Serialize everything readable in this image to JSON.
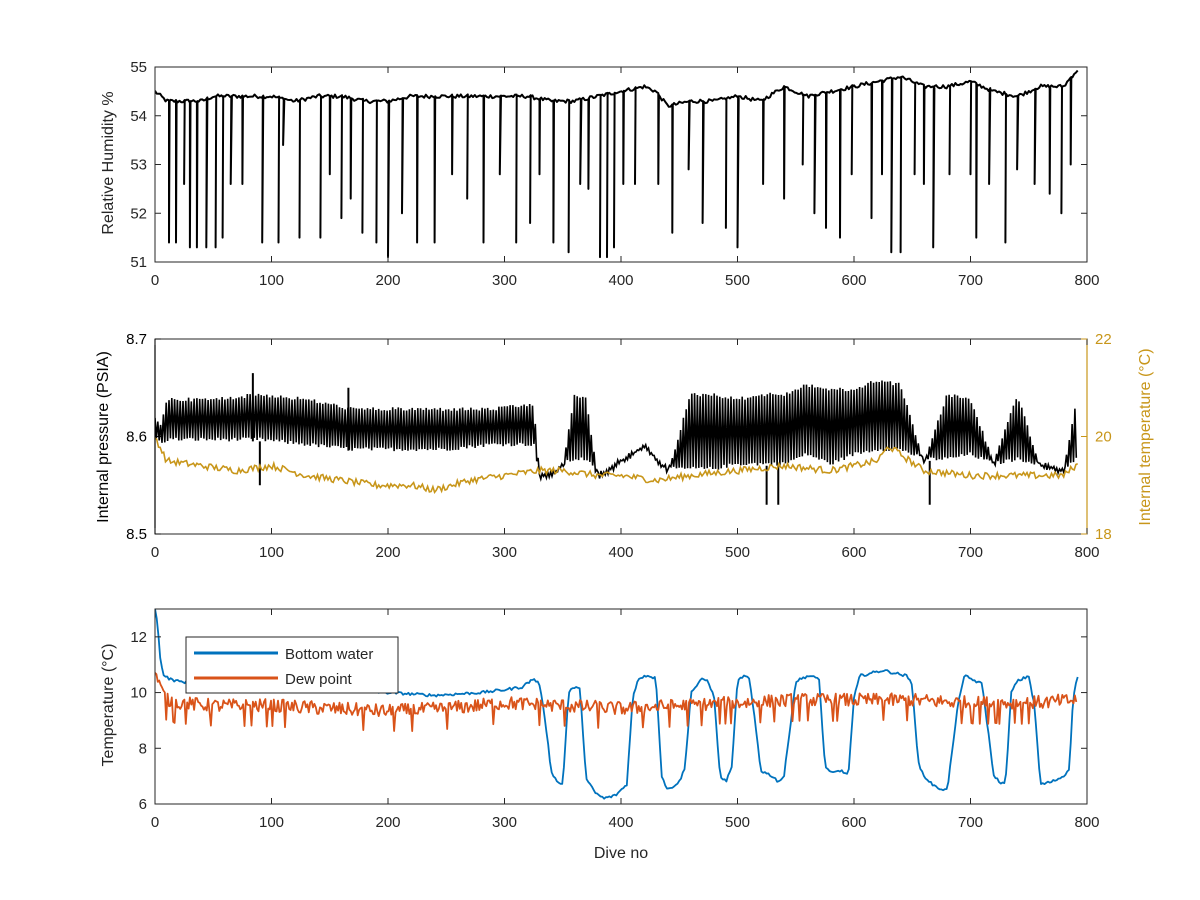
{
  "colors": {
    "black": "#000000",
    "axis": "#262626",
    "right_axis": "#c8961a",
    "bottom_water": "#0072bd",
    "dew_point": "#d95319"
  },
  "chart_data": [
    {
      "type": "line",
      "xlabel": "",
      "ylabel": "Relative Humidity %",
      "xlim": [
        0,
        800
      ],
      "ylim": [
        51,
        55
      ],
      "xticks": [
        0,
        100,
        200,
        300,
        400,
        500,
        600,
        700,
        800
      ],
      "yticks": [
        51,
        52,
        53,
        54,
        55
      ],
      "grid": false,
      "series": [
        {
          "color": "#000000",
          "x": [
            0,
            10,
            20,
            30,
            40,
            50,
            60,
            70,
            80,
            100,
            120,
            140,
            160,
            180,
            200,
            220,
            240,
            260,
            280,
            300,
            320,
            340,
            360,
            380,
            400,
            420,
            430,
            440,
            460,
            480,
            500,
            520,
            540,
            560,
            580,
            600,
            620,
            640,
            660,
            680,
            700,
            720,
            740,
            760,
            780,
            790
          ],
          "y": [
            54.5,
            54.3,
            54.3,
            54.3,
            54.3,
            54.4,
            54.4,
            54.4,
            54.4,
            54.4,
            54.3,
            54.4,
            54.4,
            54.3,
            54.3,
            54.4,
            54.4,
            54.4,
            54.4,
            54.4,
            54.4,
            54.3,
            54.3,
            54.4,
            54.5,
            54.6,
            54.5,
            54.2,
            54.3,
            54.3,
            54.4,
            54.3,
            54.6,
            54.4,
            54.5,
            54.6,
            54.7,
            54.8,
            54.6,
            54.6,
            54.7,
            54.5,
            54.4,
            54.6,
            54.6,
            54.9
          ],
          "dips": [
            {
              "x": 12,
              "y": 51.4
            },
            {
              "x": 18,
              "y": 51.4
            },
            {
              "x": 25,
              "y": 52.6
            },
            {
              "x": 30,
              "y": 51.3
            },
            {
              "x": 36,
              "y": 51.3
            },
            {
              "x": 44,
              "y": 51.3
            },
            {
              "x": 52,
              "y": 51.3
            },
            {
              "x": 58,
              "y": 51.5
            },
            {
              "x": 65,
              "y": 52.6
            },
            {
              "x": 75,
              "y": 52.6
            },
            {
              "x": 92,
              "y": 51.4
            },
            {
              "x": 106,
              "y": 51.4
            },
            {
              "x": 110,
              "y": 53.4
            },
            {
              "x": 124,
              "y": 51.5
            },
            {
              "x": 142,
              "y": 51.5
            },
            {
              "x": 150,
              "y": 52.8
            },
            {
              "x": 160,
              "y": 51.9
            },
            {
              "x": 168,
              "y": 52.3
            },
            {
              "x": 178,
              "y": 51.6
            },
            {
              "x": 190,
              "y": 51.4
            },
            {
              "x": 200,
              "y": 51.1
            },
            {
              "x": 212,
              "y": 52.0
            },
            {
              "x": 225,
              "y": 51.4
            },
            {
              "x": 240,
              "y": 51.4
            },
            {
              "x": 255,
              "y": 52.8
            },
            {
              "x": 268,
              "y": 52.3
            },
            {
              "x": 282,
              "y": 51.4
            },
            {
              "x": 296,
              "y": 52.8
            },
            {
              "x": 310,
              "y": 51.4
            },
            {
              "x": 322,
              "y": 51.8
            },
            {
              "x": 330,
              "y": 52.8
            },
            {
              "x": 342,
              "y": 51.4
            },
            {
              "x": 355,
              "y": 51.2
            },
            {
              "x": 365,
              "y": 52.6
            },
            {
              "x": 372,
              "y": 52.5
            },
            {
              "x": 382,
              "y": 51.1
            },
            {
              "x": 388,
              "y": 51.1
            },
            {
              "x": 394,
              "y": 51.3
            },
            {
              "x": 402,
              "y": 52.6
            },
            {
              "x": 412,
              "y": 52.6
            },
            {
              "x": 432,
              "y": 52.6
            },
            {
              "x": 444,
              "y": 51.6
            },
            {
              "x": 458,
              "y": 52.9
            },
            {
              "x": 470,
              "y": 51.8
            },
            {
              "x": 490,
              "y": 51.7
            },
            {
              "x": 500,
              "y": 51.3
            },
            {
              "x": 522,
              "y": 52.6
            },
            {
              "x": 540,
              "y": 52.3
            },
            {
              "x": 556,
              "y": 53.0
            },
            {
              "x": 566,
              "y": 52.0
            },
            {
              "x": 576,
              "y": 51.7
            },
            {
              "x": 588,
              "y": 51.5
            },
            {
              "x": 598,
              "y": 52.8
            },
            {
              "x": 615,
              "y": 51.9
            },
            {
              "x": 624,
              "y": 52.8
            },
            {
              "x": 632,
              "y": 51.2
            },
            {
              "x": 640,
              "y": 51.2
            },
            {
              "x": 652,
              "y": 52.8
            },
            {
              "x": 660,
              "y": 52.6
            },
            {
              "x": 668,
              "y": 51.3
            },
            {
              "x": 682,
              "y": 52.8
            },
            {
              "x": 700,
              "y": 52.8
            },
            {
              "x": 705,
              "y": 51.5
            },
            {
              "x": 716,
              "y": 52.6
            },
            {
              "x": 730,
              "y": 51.4
            },
            {
              "x": 740,
              "y": 52.9
            },
            {
              "x": 755,
              "y": 52.6
            },
            {
              "x": 768,
              "y": 52.4
            },
            {
              "x": 778,
              "y": 52.0
            },
            {
              "x": 786,
              "y": 53.0
            }
          ]
        }
      ]
    },
    {
      "type": "line",
      "xlabel": "",
      "ylabel": "Internal pressure (PSIA)",
      "ylabel_right": "Internal temperature (°C)",
      "xlim": [
        0,
        800
      ],
      "ylim": [
        8.5,
        8.7
      ],
      "ylim_right": [
        18,
        22
      ],
      "xticks": [
        0,
        100,
        200,
        300,
        400,
        500,
        600,
        700,
        800
      ],
      "yticks": [
        8.5,
        8.6,
        8.7
      ],
      "yticks_right": [
        18,
        20,
        22
      ],
      "grid": false,
      "series": [
        {
          "axis": "left",
          "color": "#000000",
          "x": [
            0,
            5,
            10,
            50,
            90,
            130,
            170,
            210,
            250,
            290,
            325,
            330,
            340,
            350,
            360,
            370,
            380,
            390,
            400,
            420,
            440,
            460,
            480,
            500,
            520,
            540,
            560,
            580,
            600,
            620,
            640,
            660,
            680,
            700,
            720,
            740,
            760,
            780,
            790
          ],
          "low": [
            8.6,
            8.59,
            8.595,
            8.595,
            8.595,
            8.59,
            8.585,
            8.585,
            8.585,
            8.59,
            8.59,
            8.56,
            8.56,
            8.57,
            8.575,
            8.575,
            8.56,
            8.565,
            8.575,
            8.59,
            8.565,
            8.565,
            8.565,
            8.57,
            8.57,
            8.57,
            8.58,
            8.57,
            8.58,
            8.585,
            8.585,
            8.575,
            8.575,
            8.58,
            8.57,
            8.575,
            8.57,
            8.565,
            8.575
          ],
          "high": [
            8.62,
            8.615,
            8.64,
            8.64,
            8.645,
            8.64,
            8.63,
            8.63,
            8.63,
            8.63,
            8.635,
            8.56,
            8.56,
            8.57,
            8.645,
            8.64,
            8.56,
            8.565,
            8.575,
            8.59,
            8.565,
            8.645,
            8.645,
            8.64,
            8.645,
            8.645,
            8.655,
            8.65,
            8.65,
            8.66,
            8.655,
            8.575,
            8.645,
            8.64,
            8.575,
            8.645,
            8.57,
            8.565,
            8.635
          ],
          "spikes": [
            {
              "x": 84,
              "y": 8.665
            },
            {
              "x": 90,
              "y": 8.55
            },
            {
              "x": 166,
              "y": 8.65
            },
            {
              "x": 525,
              "y": 8.53
            },
            {
              "x": 535,
              "y": 8.53
            },
            {
              "x": 665,
              "y": 8.53
            }
          ]
        },
        {
          "axis": "right",
          "color": "#c8961a",
          "x": [
            0,
            10,
            40,
            70,
            100,
            130,
            160,
            190,
            220,
            240,
            270,
            300,
            330,
            350,
            380,
            400,
            430,
            460,
            500,
            540,
            580,
            620,
            630,
            660,
            700,
            740,
            780,
            790
          ],
          "y": [
            20.0,
            19.5,
            19.4,
            19.3,
            19.4,
            19.2,
            19.1,
            19.0,
            19.0,
            18.9,
            19.1,
            19.2,
            19.3,
            19.3,
            19.2,
            19.2,
            19.1,
            19.2,
            19.3,
            19.4,
            19.3,
            19.5,
            19.8,
            19.3,
            19.2,
            19.2,
            19.2,
            19.4
          ]
        }
      ]
    },
    {
      "type": "line",
      "xlabel": "Dive no",
      "ylabel": "Temperature (°C)",
      "xlim": [
        0,
        800
      ],
      "ylim": [
        6,
        13
      ],
      "xticks": [
        0,
        100,
        200,
        300,
        400,
        500,
        600,
        700,
        800
      ],
      "yticks": [
        6,
        8,
        10,
        12
      ],
      "grid": false,
      "legend": {
        "position": "top-left",
        "entries": [
          "Bottom water",
          "Dew point"
        ]
      },
      "series": [
        {
          "name": "Bottom water",
          "color": "#0072bd",
          "x": [
            0,
            2,
            5,
            8,
            12,
            20,
            50,
            100,
            150,
            200,
            240,
            280,
            300,
            315,
            325,
            330,
            335,
            340,
            345,
            350,
            355,
            360,
            365,
            370,
            378,
            385,
            395,
            405,
            410,
            415,
            420,
            425,
            430,
            435,
            440,
            450,
            455,
            460,
            470,
            475,
            480,
            485,
            490,
            495,
            500,
            505,
            510,
            515,
            520,
            530,
            535,
            540,
            550,
            560,
            570,
            575,
            580,
            590,
            595,
            600,
            605,
            615,
            625,
            635,
            645,
            650,
            655,
            660,
            665,
            670,
            680,
            690,
            695,
            700,
            710,
            720,
            725,
            730,
            735,
            740,
            750,
            755,
            760,
            770,
            780,
            785,
            788,
            792
          ],
          "y": [
            13.0,
            12.6,
            11.0,
            10.6,
            10.5,
            10.4,
            10.3,
            10.2,
            10.1,
            10.0,
            9.9,
            10.0,
            10.1,
            10.2,
            10.5,
            10.3,
            9.0,
            7.2,
            6.8,
            6.7,
            10.0,
            10.2,
            10.1,
            6.9,
            6.4,
            6.2,
            6.3,
            6.7,
            9.8,
            10.5,
            10.6,
            10.6,
            10.5,
            7.0,
            6.5,
            6.8,
            7.3,
            10.0,
            10.5,
            10.4,
            9.8,
            7.0,
            6.8,
            7.3,
            10.4,
            10.6,
            10.5,
            9.0,
            7.2,
            7.0,
            6.8,
            7.0,
            10.4,
            10.6,
            10.5,
            7.4,
            7.1,
            7.2,
            7.0,
            9.8,
            10.6,
            10.7,
            10.8,
            10.7,
            10.6,
            10.3,
            7.5,
            7.0,
            6.8,
            6.6,
            6.5,
            9.8,
            10.6,
            10.5,
            10.3,
            7.0,
            6.8,
            6.7,
            10.0,
            10.4,
            10.6,
            9.5,
            6.7,
            6.8,
            7.0,
            7.3,
            9.8,
            10.6
          ]
        },
        {
          "name": "Dew point",
          "color": "#d95319",
          "x": [
            0,
            5,
            10,
            20,
            50,
            100,
            150,
            200,
            250,
            300,
            350,
            400,
            450,
            500,
            550,
            600,
            650,
            700,
            750,
            792
          ],
          "y": [
            10.8,
            10.2,
            9.8,
            9.7,
            9.6,
            9.6,
            9.5,
            9.4,
            9.5,
            9.7,
            9.6,
            9.5,
            9.6,
            9.7,
            9.8,
            9.8,
            9.8,
            9.7,
            9.7,
            9.8
          ]
        }
      ]
    }
  ]
}
